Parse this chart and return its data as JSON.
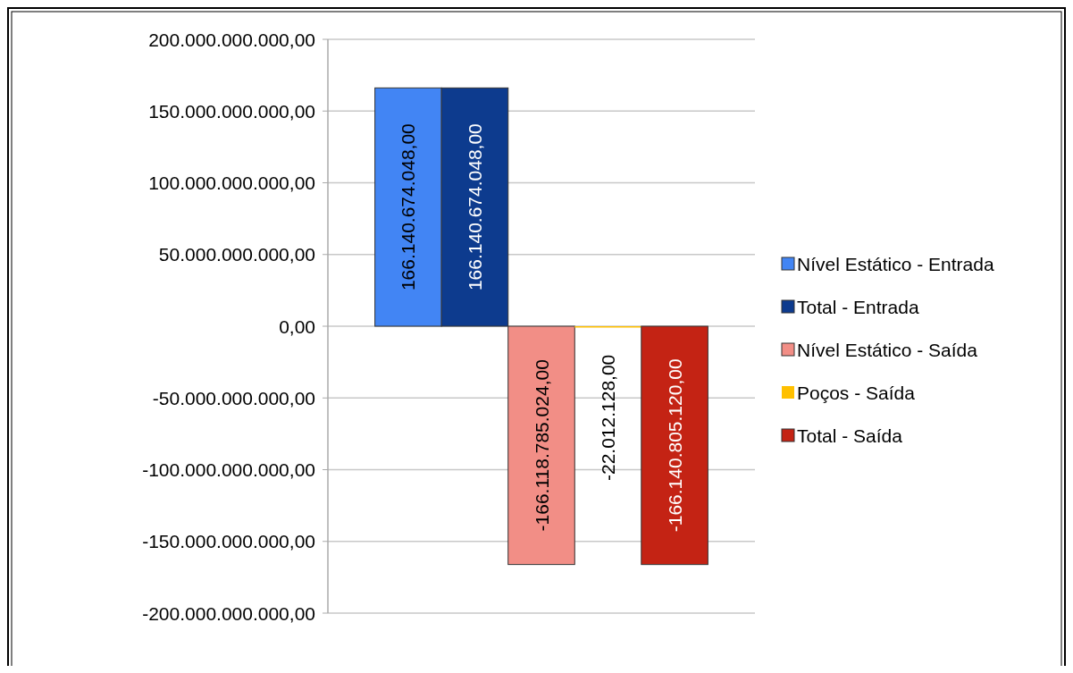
{
  "chart_data": {
    "type": "bar",
    "categories": [
      null
    ],
    "series": [
      {
        "name": "Nível Estático - Entrada",
        "color": "#4285f4",
        "values": [
          166140674048
        ],
        "value_labels": [
          "166.140.674.048,00"
        ]
      },
      {
        "name": "Total - Entrada",
        "color": "#0d3b8e",
        "values": [
          166140674048
        ],
        "value_labels": [
          "166.140.674.048,00"
        ]
      },
      {
        "name": "Nível Estático - Saída",
        "color": "#f28e86",
        "values": [
          -166118785024
        ],
        "value_labels": [
          "-166.118.785.024,00"
        ]
      },
      {
        "name": "Poços - Saída",
        "color": "#ffc000",
        "values": [
          -22012128
        ],
        "value_labels": [
          "-22.012.128,00"
        ]
      },
      {
        "name": "Total - Saída",
        "color": "#c42314",
        "values": [
          -166140805120
        ],
        "value_labels": [
          "-166.140.805.120,00"
        ]
      }
    ],
    "ylim": [
      -200000000000,
      200000000000
    ],
    "yticks": [
      {
        "value": -200000000000,
        "label": "-200.000.000.000,00"
      },
      {
        "value": -150000000000,
        "label": "-150.000.000.000,00"
      },
      {
        "value": -100000000000,
        "label": "-100.000.000.000,00"
      },
      {
        "value": -50000000000,
        "label": "-50.000.000.000,00"
      },
      {
        "value": 0,
        "label": "0,00"
      },
      {
        "value": 50000000000,
        "label": "50.000.000.000,00"
      },
      {
        "value": 100000000000,
        "label": "100.000.000.000,00"
      },
      {
        "value": 150000000000,
        "label": "150.000.000.000,00"
      },
      {
        "value": 200000000000,
        "label": "200.000.000.000,00"
      }
    ],
    "grid": "y",
    "legend": "right"
  }
}
